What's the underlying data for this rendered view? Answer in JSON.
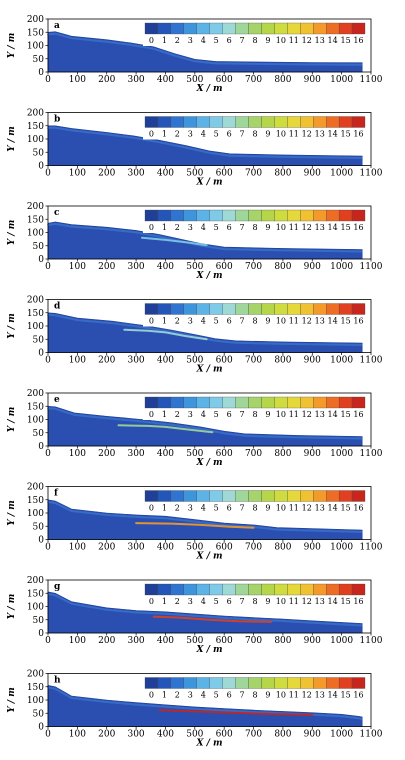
{
  "chart_data": {
    "type": "heatmap",
    "xlabel": "X / m",
    "ylabel": "Y / m",
    "xlim": [
      0,
      1100
    ],
    "ylim": [
      0,
      200
    ],
    "x_ticks": [
      0,
      100,
      200,
      300,
      400,
      500,
      600,
      700,
      800,
      900,
      1000,
      1100
    ],
    "y_ticks": [
      0,
      50,
      100,
      150,
      200
    ],
    "colorbar": {
      "levels": [
        "0",
        "1",
        "2",
        "3",
        "4",
        "5",
        "6",
        "7",
        "8",
        "9",
        "10",
        "11",
        "12",
        "13",
        "14",
        "15",
        "16"
      ],
      "colors": [
        "#1f3f99",
        "#2356b8",
        "#2f74d0",
        "#3f95dc",
        "#5bb3e6",
        "#7fcbe7",
        "#9ed9d6",
        "#9fd79a",
        "#a6d46a",
        "#b6d64a",
        "#cfdc3d",
        "#e4d83a",
        "#f0c232",
        "#f39a2a",
        "#ee6d24",
        "#e0401f",
        "#c8251c"
      ]
    },
    "panels": [
      {
        "label": "a",
        "surface": [
          [
            0,
            150
          ],
          [
            25,
            152
          ],
          [
            80,
            135
          ],
          [
            200,
            122
          ],
          [
            280,
            110
          ],
          [
            360,
            95
          ],
          [
            430,
            70
          ],
          [
            500,
            48
          ],
          [
            570,
            40
          ],
          [
            700,
            38
          ],
          [
            900,
            36
          ],
          [
            1070,
            35
          ]
        ],
        "band": null
      },
      {
        "label": "b",
        "surface": [
          [
            0,
            150
          ],
          [
            25,
            150
          ],
          [
            80,
            140
          ],
          [
            200,
            125
          ],
          [
            290,
            112
          ],
          [
            380,
            95
          ],
          [
            470,
            75
          ],
          [
            550,
            55
          ],
          [
            620,
            44
          ],
          [
            800,
            40
          ],
          [
            1070,
            36
          ]
        ],
        "band": null
      },
      {
        "label": "c",
        "surface": [
          [
            0,
            135
          ],
          [
            25,
            140
          ],
          [
            80,
            130
          ],
          [
            200,
            120
          ],
          [
            300,
            108
          ],
          [
            380,
            92
          ],
          [
            450,
            75
          ],
          [
            520,
            58
          ],
          [
            600,
            45
          ],
          [
            800,
            40
          ],
          [
            1070,
            36
          ]
        ],
        "band": {
          "color": "#7fcbe7",
          "pts": [
            [
              320,
              80
            ],
            [
              400,
              72
            ],
            [
              480,
              62
            ],
            [
              540,
              52
            ]
          ]
        }
      },
      {
        "label": "d",
        "surface": [
          [
            0,
            150
          ],
          [
            25,
            148
          ],
          [
            100,
            130
          ],
          [
            220,
            118
          ],
          [
            330,
            102
          ],
          [
            420,
            85
          ],
          [
            500,
            68
          ],
          [
            570,
            52
          ],
          [
            640,
            44
          ],
          [
            800,
            40
          ],
          [
            1070,
            36
          ]
        ],
        "band": {
          "color": "#9ed9d6",
          "pts": [
            [
              260,
              86
            ],
            [
              340,
              82
            ],
            [
              400,
              76
            ],
            [
              470,
              62
            ],
            [
              540,
              50
            ]
          ]
        }
      },
      {
        "label": "e",
        "surface": [
          [
            0,
            150
          ],
          [
            25,
            148
          ],
          [
            90,
            125
          ],
          [
            200,
            112
          ],
          [
            320,
            100
          ],
          [
            420,
            88
          ],
          [
            520,
            72
          ],
          [
            600,
            56
          ],
          [
            670,
            46
          ],
          [
            850,
            40
          ],
          [
            1070,
            36
          ]
        ],
        "band": {
          "color": "#9fd79a",
          "pts": [
            [
              240,
              78
            ],
            [
              340,
              76
            ],
            [
              400,
              72
            ],
            [
              480,
              62
            ],
            [
              560,
              52
            ]
          ]
        }
      },
      {
        "label": "f",
        "surface": [
          [
            0,
            150
          ],
          [
            25,
            145
          ],
          [
            80,
            115
          ],
          [
            200,
            100
          ],
          [
            300,
            93
          ],
          [
            400,
            88
          ],
          [
            500,
            75
          ],
          [
            600,
            62
          ],
          [
            700,
            55
          ],
          [
            780,
            45
          ],
          [
            1070,
            36
          ]
        ],
        "band": {
          "color": "#f39a2a",
          "pts": [
            [
              300,
              62
            ],
            [
              420,
              60
            ],
            [
              520,
              55
            ],
            [
              620,
              48
            ],
            [
              700,
              44
            ]
          ]
        }
      },
      {
        "label": "g",
        "surface": [
          [
            0,
            155
          ],
          [
            25,
            150
          ],
          [
            80,
            118
          ],
          [
            200,
            95
          ],
          [
            300,
            85
          ],
          [
            400,
            80
          ],
          [
            500,
            72
          ],
          [
            600,
            64
          ],
          [
            700,
            58
          ],
          [
            800,
            53
          ],
          [
            900,
            46
          ],
          [
            1000,
            40
          ],
          [
            1070,
            36
          ]
        ],
        "band": {
          "color": "#e0401f",
          "pts": [
            [
              360,
              62
            ],
            [
              450,
              58
            ],
            [
              550,
              50
            ],
            [
              650,
              44
            ],
            [
              760,
              42
            ]
          ]
        }
      },
      {
        "label": "h",
        "surface": [
          [
            0,
            155
          ],
          [
            25,
            150
          ],
          [
            80,
            115
          ],
          [
            200,
            100
          ],
          [
            300,
            90
          ],
          [
            400,
            82
          ],
          [
            500,
            74
          ],
          [
            600,
            68
          ],
          [
            700,
            62
          ],
          [
            800,
            57
          ],
          [
            900,
            52
          ],
          [
            1000,
            46
          ],
          [
            1060,
            38
          ],
          [
            1070,
            36
          ]
        ],
        "band": {
          "color": "#c8251c",
          "pts": [
            [
              380,
              62
            ],
            [
              480,
              58
            ],
            [
              580,
              54
            ],
            [
              680,
              50
            ],
            [
              780,
              46
            ],
            [
              900,
              44
            ]
          ]
        }
      }
    ]
  }
}
